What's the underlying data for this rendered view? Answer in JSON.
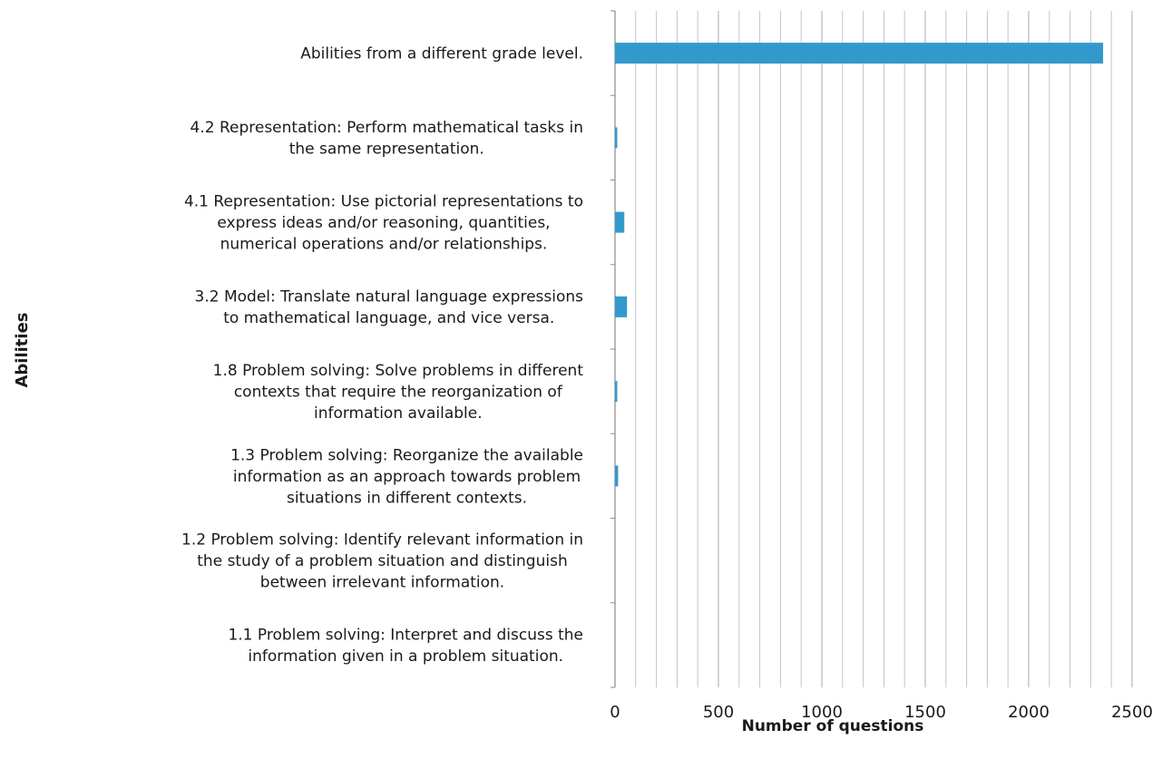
{
  "chart_data": {
    "type": "bar",
    "orientation": "horizontal",
    "xlabel": "Number of questions",
    "ylabel": "Abilities",
    "xlim": [
      0,
      2500
    ],
    "x_ticks": [
      0,
      500,
      1000,
      1500,
      2000,
      2500
    ],
    "x_minor_step": 100,
    "grid": true,
    "bar_color": "#3399cc",
    "categories": [
      {
        "label": "Abilities from a different grade level.",
        "lines": [
          "Abilities from a different grade level."
        ],
        "value": 2360
      },
      {
        "label": "4.2 Representation: Perform mathematical tasks in the same representation.",
        "lines": [
          "4.2 Representation: Perform mathematical tasks in",
          "the same representation."
        ],
        "value": 8
      },
      {
        "label": "4.1 Representation: Use pictorial representations to express ideas and/or reasoning, quantities, numerical operations and/or relationships.",
        "lines": [
          "4.1 Representation: Use pictorial representations to",
          "express ideas and/or reasoning, quantities,",
          "numerical operations and/or relationships."
        ],
        "value": 45
      },
      {
        "label": "3.2 Model: Translate natural language expressions to mathematical language, and vice versa.",
        "lines": [
          "3.2 Model: Translate natural language expressions",
          "to mathematical language, and vice versa."
        ],
        "value": 58
      },
      {
        "label": "1.8 Problem solving: Solve problems in different contexts that require the reorganization of information available.",
        "lines": [
          "1.8 Problem solving: Solve problems in different",
          "contexts that require the reorganization of",
          "information available."
        ],
        "value": 8
      },
      {
        "label": "1.3 Problem solving: Reorganize the available information as an approach towards problem situations in different contexts.",
        "lines": [
          "1.3 Problem solving: Reorganize the available",
          "information as an approach towards problem",
          "situations in different contexts."
        ],
        "value": 15
      },
      {
        "label": "1.2 Problem solving: Identify relevant information in the study of a problem situation and distinguish between irrelevant information.",
        "lines": [
          "1.2 Problem solving: Identify relevant information in",
          "the study of a problem situation and distinguish",
          "between irrelevant information."
        ],
        "value": 0
      },
      {
        "label": "1.1 Problem solving: Interpret and discuss the information given in a problem situation.",
        "lines": [
          "1.1 Problem solving: Interpret and discuss the",
          "information given in a problem situation."
        ],
        "value": 0
      }
    ]
  }
}
